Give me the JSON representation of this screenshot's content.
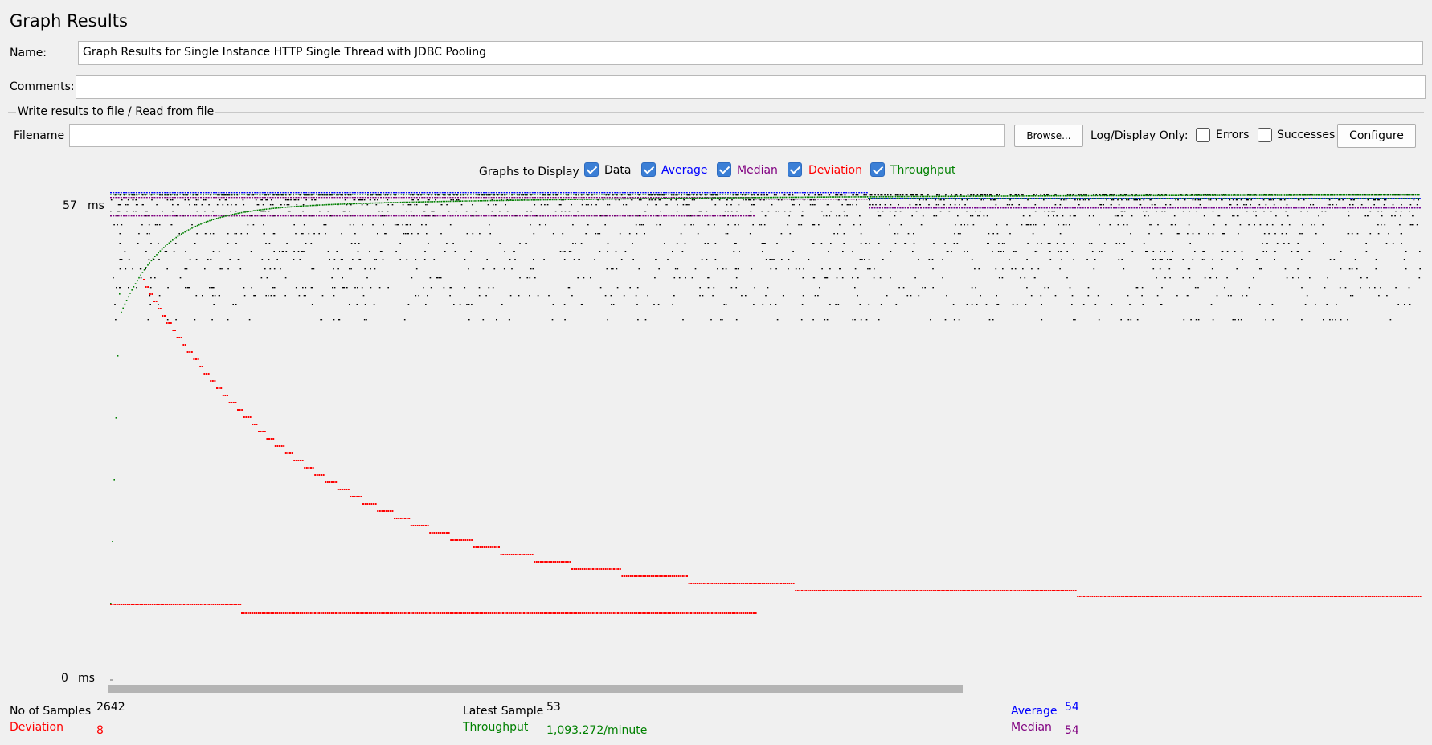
{
  "window": {
    "title": "Graph Results"
  },
  "form": {
    "name_label": "Name:",
    "name_value": "Graph Results for Single Instance HTTP Single Thread with JDBC Pooling",
    "comments_label": "Comments:",
    "comments_value": "",
    "file_section_label": "Write results to file / Read from file",
    "filename_label": "Filename",
    "filename_value": "",
    "browse_label": "Browse...",
    "log_display_label": "Log/Display Only:",
    "errors_label": "Errors",
    "successes_label": "Successes",
    "configure_label": "Configure"
  },
  "graphs_to_display": {
    "label": "Graphs to Display",
    "options": [
      {
        "label": "Data",
        "checked": true,
        "color": "#000000"
      },
      {
        "label": "Average",
        "checked": true,
        "color": "#0000ff"
      },
      {
        "label": "Median",
        "checked": true,
        "color": "#800080"
      },
      {
        "label": "Deviation",
        "checked": true,
        "color": "#ff0000"
      },
      {
        "label": "Throughput",
        "checked": true,
        "color": "#008000"
      }
    ]
  },
  "axis": {
    "top_value": "57",
    "top_unit": "ms",
    "bottom_value": "0",
    "bottom_unit": "ms"
  },
  "stats": {
    "samples_label": "No of Samples",
    "samples_value": "2642",
    "deviation_label": "Deviation",
    "deviation_value": "8",
    "latest_label": "Latest Sample",
    "latest_value": "53",
    "throughput_label": "Throughput",
    "throughput_value": "1,093.272/minute",
    "average_label": "Average",
    "average_value": "54",
    "median_label": "Median",
    "median_value": "54"
  },
  "colors": {
    "data": "#000000",
    "average": "#0000ff",
    "median": "#800080",
    "deviation": "#ff0000",
    "throughput": "#008000",
    "scrollbar": "#b4b4b4"
  },
  "chart_data": {
    "type": "scatter",
    "ylim": [
      0,
      57
    ],
    "series": [
      {
        "name": "Average",
        "final_value": 54
      },
      {
        "name": "Median",
        "final_value": 54
      },
      {
        "name": "Deviation",
        "final_value": 8
      },
      {
        "name": "Throughput",
        "final_value": "1,093.272/minute"
      }
    ]
  }
}
